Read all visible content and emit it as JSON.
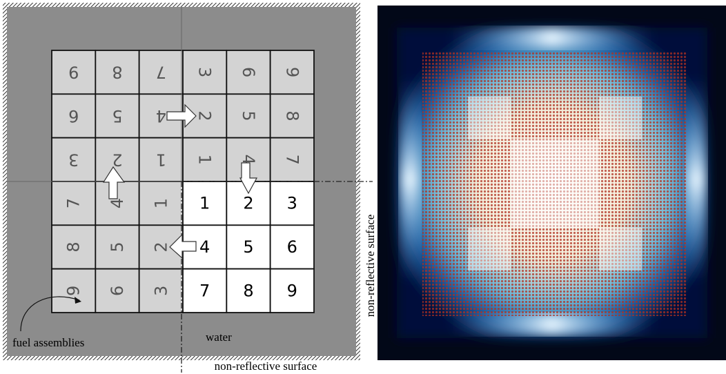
{
  "grid": {
    "rows": [
      [
        "9",
        "8",
        "7",
        "3",
        "6",
        "9"
      ],
      [
        "6",
        "5",
        "4",
        "2",
        "5",
        "8"
      ],
      [
        "3",
        "2",
        "1",
        "1",
        "4",
        "7"
      ],
      [
        "7",
        "4",
        "1",
        "1",
        "2",
        "3"
      ],
      [
        "8",
        "5",
        "2",
        "4",
        "5",
        "6"
      ],
      [
        "9",
        "6",
        "3",
        "7",
        "8",
        "9"
      ]
    ]
  },
  "labels": {
    "fuel_assemblies": "fuel assemblies",
    "water": "water",
    "bottom_surface": "non-reflective surface",
    "right_surface": "non-reflective surface"
  }
}
